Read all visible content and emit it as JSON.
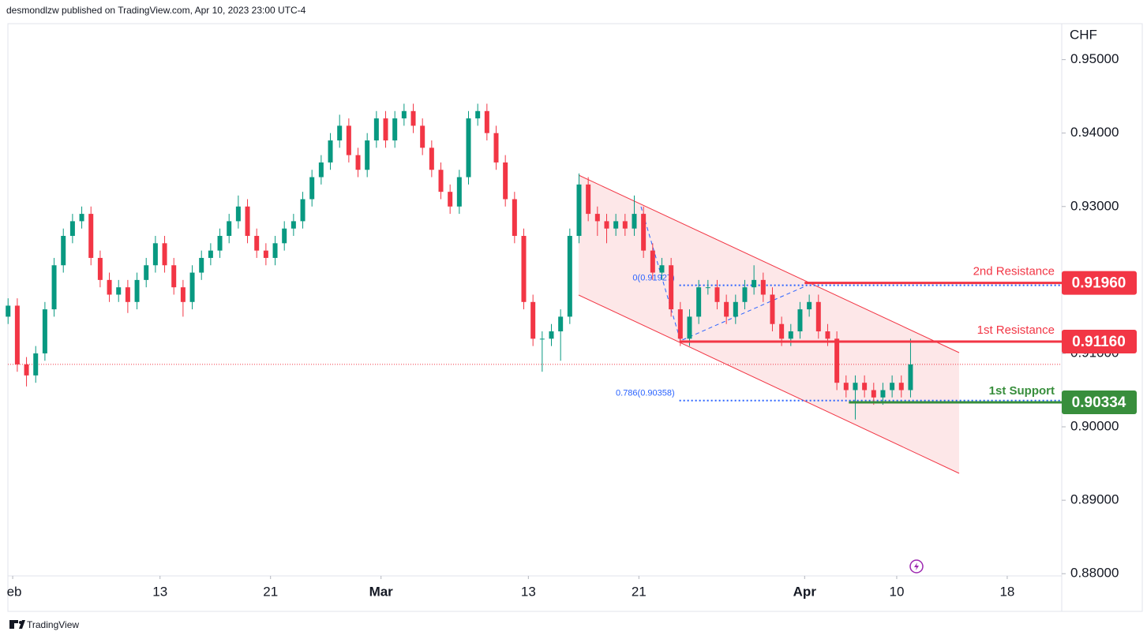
{
  "header": "desmondlzw published on TradingView.com, Apr 10, 2023 23:00 UTC-4",
  "footer": "TradingView",
  "chart_data": {
    "type": "candlestick",
    "currency": "CHF",
    "up_color": "#089981",
    "down_color": "#f23645",
    "x": [
      -0.25,
      0.25,
      0.75,
      1.25,
      1.75,
      2.25,
      2.75,
      3.25,
      3.75,
      4.25,
      4.75,
      5.25,
      5.75,
      6.25,
      6.75,
      7.25,
      7.75,
      8.25,
      8.75,
      9.25,
      9.75,
      10.25,
      10.75,
      11.25,
      11.75,
      12.25,
      12.75,
      13.25,
      13.75,
      14.25,
      14.75,
      15.25,
      15.75,
      16.25,
      16.75,
      17.25,
      17.75,
      18.25,
      18.75,
      19.25,
      19.75,
      20.25,
      20.75,
      21.25,
      21.75,
      22.25,
      22.75,
      23.25,
      23.75,
      24.25,
      24.75,
      25.25,
      25.75,
      26.25,
      26.75,
      27.25,
      27.75,
      28.25,
      28.75,
      29.25,
      29.75,
      30.25,
      30.75,
      31.25,
      31.75,
      32.25,
      32.75,
      33.25,
      33.75,
      34.25,
      34.75,
      35.25,
      35.75,
      36.25,
      36.75,
      37.25,
      37.75,
      38.25,
      38.75,
      39.25,
      39.75,
      40.25,
      40.75,
      41.25,
      41.75,
      42.25,
      42.75,
      43.25,
      43.75,
      44.25,
      44.75,
      45.25,
      45.75,
      46.25,
      46.75,
      47.25,
      47.75,
      48.25,
      48.75
    ],
    "open": [
      0.915,
      0.9165,
      0.9085,
      0.907,
      0.91,
      0.916,
      0.922,
      0.926,
      0.928,
      0.929,
      0.923,
      0.92,
      0.918,
      0.919,
      0.917,
      0.92,
      0.922,
      0.925,
      0.922,
      0.919,
      0.917,
      0.921,
      0.923,
      0.924,
      0.926,
      0.928,
      0.93,
      0.926,
      0.924,
      0.923,
      0.925,
      0.927,
      0.928,
      0.931,
      0.934,
      0.936,
      0.939,
      0.941,
      0.937,
      0.935,
      0.939,
      0.942,
      0.939,
      0.942,
      0.943,
      0.941,
      0.938,
      0.935,
      0.932,
      0.93,
      0.934,
      0.942,
      0.943,
      0.94,
      0.936,
      0.931,
      0.926,
      0.917,
      0.912,
      0.912,
      0.913,
      0.915,
      0.926,
      0.933,
      0.929,
      0.928,
      0.927,
      0.928,
      0.927,
      0.929,
      0.924,
      0.921,
      0.922,
      0.916,
      0.912,
      0.915,
      0.919,
      0.919,
      0.917,
      0.915,
      0.917,
      0.919,
      0.92,
      0.918,
      0.914,
      0.912,
      0.913,
      0.916,
      0.917,
      0.913,
      0.912,
      0.906,
      0.905,
      0.906,
      0.905,
      0.904,
      0.905,
      0.906,
      0.905
    ],
    "high": [
      0.9175,
      0.9175,
      0.9095,
      0.911,
      0.917,
      0.923,
      0.927,
      0.929,
      0.93,
      0.93,
      0.924,
      0.921,
      0.92,
      0.92,
      0.921,
      0.923,
      0.926,
      0.926,
      0.923,
      0.92,
      0.922,
      0.924,
      0.925,
      0.927,
      0.929,
      0.9315,
      0.931,
      0.927,
      0.925,
      0.926,
      0.928,
      0.929,
      0.932,
      0.935,
      0.937,
      0.94,
      0.9425,
      0.942,
      0.938,
      0.94,
      0.943,
      0.943,
      0.943,
      0.944,
      0.944,
      0.942,
      0.939,
      0.936,
      0.933,
      0.935,
      0.943,
      0.944,
      0.944,
      0.941,
      0.937,
      0.932,
      0.927,
      0.918,
      0.913,
      0.914,
      0.916,
      0.927,
      0.9345,
      0.934,
      0.93,
      0.929,
      0.929,
      0.929,
      0.9315,
      0.93,
      0.925,
      0.923,
      0.923,
      0.917,
      0.916,
      0.92,
      0.92,
      0.92,
      0.918,
      0.918,
      0.92,
      0.922,
      0.921,
      0.919,
      0.915,
      0.914,
      0.917,
      0.918,
      0.918,
      0.914,
      0.913,
      0.907,
      0.907,
      0.907,
      0.906,
      0.906,
      0.907,
      0.907,
      0.912
    ],
    "low": [
      0.914,
      0.9075,
      0.9055,
      0.906,
      0.909,
      0.915,
      0.921,
      0.925,
      0.927,
      0.922,
      0.919,
      0.917,
      0.917,
      0.9155,
      0.916,
      0.919,
      0.921,
      0.921,
      0.918,
      0.915,
      0.916,
      0.92,
      0.922,
      0.923,
      0.925,
      0.927,
      0.925,
      0.923,
      0.922,
      0.922,
      0.924,
      0.926,
      0.927,
      0.93,
      0.933,
      0.935,
      0.938,
      0.936,
      0.934,
      0.934,
      0.938,
      0.938,
      0.938,
      0.941,
      0.94,
      0.937,
      0.934,
      0.931,
      0.929,
      0.929,
      0.933,
      0.941,
      0.939,
      0.935,
      0.93,
      0.925,
      0.916,
      0.911,
      0.9075,
      0.911,
      0.909,
      0.914,
      0.925,
      0.928,
      0.926,
      0.925,
      0.926,
      0.926,
      0.926,
      0.923,
      0.92,
      0.92,
      0.915,
      0.911,
      0.911,
      0.914,
      0.918,
      0.916,
      0.914,
      0.914,
      0.916,
      0.918,
      0.917,
      0.913,
      0.911,
      0.911,
      0.912,
      0.915,
      0.912,
      0.911,
      0.905,
      0.904,
      0.901,
      0.904,
      0.903,
      0.903,
      0.904,
      0.904,
      0.904
    ],
    "close": [
      0.9165,
      0.9085,
      0.907,
      0.91,
      0.916,
      0.922,
      0.926,
      0.928,
      0.929,
      0.923,
      0.92,
      0.918,
      0.919,
      0.917,
      0.92,
      0.922,
      0.925,
      0.922,
      0.919,
      0.917,
      0.921,
      0.923,
      0.924,
      0.926,
      0.928,
      0.93,
      0.926,
      0.924,
      0.923,
      0.925,
      0.927,
      0.928,
      0.931,
      0.934,
      0.936,
      0.939,
      0.941,
      0.937,
      0.935,
      0.939,
      0.942,
      0.939,
      0.942,
      0.943,
      0.941,
      0.938,
      0.935,
      0.932,
      0.93,
      0.934,
      0.942,
      0.943,
      0.94,
      0.936,
      0.931,
      0.926,
      0.917,
      0.912,
      0.912,
      0.913,
      0.915,
      0.926,
      0.933,
      0.929,
      0.928,
      0.927,
      0.928,
      0.927,
      0.929,
      0.924,
      0.921,
      0.922,
      0.916,
      0.912,
      0.915,
      0.919,
      0.919,
      0.917,
      0.915,
      0.917,
      0.919,
      0.92,
      0.918,
      0.914,
      0.912,
      0.913,
      0.916,
      0.917,
      0.913,
      0.912,
      0.906,
      0.905,
      0.906,
      0.905,
      0.904,
      0.905,
      0.906,
      0.905,
      0.9085
    ],
    "xlim": [
      -0.26,
      56.96
    ],
    "ylim": [
      0.8797,
      0.9549
    ],
    "xticks": [
      {
        "value": 0,
        "label": "eb"
      },
      {
        "value": 8,
        "label": "13"
      },
      {
        "value": 14,
        "label": "21"
      },
      {
        "value": 20,
        "label": "Mar"
      },
      {
        "value": 28,
        "label": "13"
      },
      {
        "value": 34,
        "label": "21"
      },
      {
        "value": 43,
        "label": "Apr"
      },
      {
        "value": 48,
        "label": "10"
      },
      {
        "value": 54,
        "label": "18"
      }
    ],
    "yticks": [
      {
        "value": 0.95,
        "label": "0.95000"
      },
      {
        "value": 0.94,
        "label": "0.94000"
      },
      {
        "value": 0.93,
        "label": "0.93000"
      },
      {
        "value": 0.91,
        "label": "0.91000"
      },
      {
        "value": 0.9,
        "label": "0.90000"
      },
      {
        "value": 0.89,
        "label": "0.89000"
      },
      {
        "value": 0.88,
        "label": "0.88000"
      }
    ],
    "last_price": 0.9085,
    "levels": [
      {
        "name": "2nd Resistance",
        "value": 0.9196,
        "label": "0.91960",
        "color": "#f23645",
        "x_start": 43
      },
      {
        "name": "1st Resistance",
        "value": 0.9116,
        "label": "0.91160",
        "color": "#f23645",
        "x_start": 36.2
      },
      {
        "name": "1st Support",
        "value": 0.90334,
        "label": "0.90334",
        "color": "#388e3c",
        "x_start": 45.4
      }
    ],
    "fib_levels": [
      {
        "label": "0(0.91927)",
        "value": 0.91927,
        "x_start": 36.2
      },
      {
        "label": "0.786(0.90358)",
        "value": 0.90358,
        "x_start": 36.2
      }
    ]
  }
}
